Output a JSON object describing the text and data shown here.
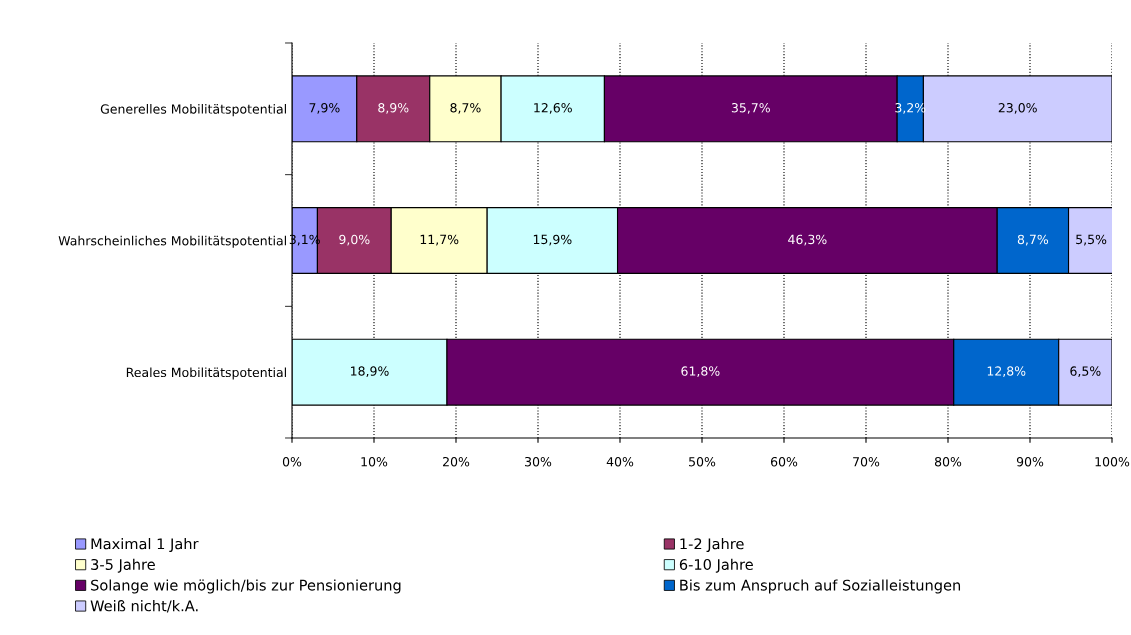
{
  "chart_data": {
    "type": "bar",
    "orientation": "horizontal",
    "stacked": true,
    "categories": [
      "Generelles Mobilitätspotential",
      "Wahrscheinliches Mobilitätspotential",
      "Reales Mobilitätspotential"
    ],
    "series": [
      {
        "name": "Maximal 1 Jahr",
        "color": "#9999ff",
        "values": [
          7.9,
          3.1,
          null
        ],
        "value_labels": [
          "7,9%",
          "3,1%",
          null
        ]
      },
      {
        "name": "1-2 Jahre",
        "color": "#993366",
        "values": [
          8.9,
          9.0,
          null
        ],
        "value_labels": [
          "8,9%",
          "9,0%",
          null
        ]
      },
      {
        "name": "3-5 Jahre",
        "color": "#ffffcc",
        "values": [
          8.7,
          11.7,
          null
        ],
        "value_labels": [
          "8,7%",
          "11,7%",
          null
        ]
      },
      {
        "name": "6-10 Jahre",
        "color": "#ccffff",
        "values": [
          12.6,
          15.9,
          18.9
        ],
        "value_labels": [
          "12,6%",
          "15,9%",
          "18,9%"
        ]
      },
      {
        "name": "Solange wie möglich/bis zur Pensionierung",
        "color": "#660066",
        "values": [
          35.7,
          46.3,
          61.8
        ],
        "value_labels": [
          "35,7%",
          "46,3%",
          "61,8%"
        ]
      },
      {
        "name": "Bis zum Anspruch auf Sozialleistungen",
        "color": "#0066cc",
        "values": [
          3.2,
          8.7,
          12.8
        ],
        "value_labels": [
          "3,2%",
          "8,7%",
          "12,8%"
        ]
      },
      {
        "name": "Weiß nicht/k.A.",
        "color": "#ccccff",
        "values": [
          23.0,
          5.5,
          6.5
        ],
        "value_labels": [
          "23,0%",
          "5,5%",
          "6,5%"
        ]
      }
    ],
    "xlim": [
      0,
      100
    ],
    "xticks": [
      {
        "value": 0,
        "label": "0%"
      },
      {
        "value": 10,
        "label": "10%"
      },
      {
        "value": 20,
        "label": "20%"
      },
      {
        "value": 30,
        "label": "30%"
      },
      {
        "value": 40,
        "label": "40%"
      },
      {
        "value": 50,
        "label": "50%"
      },
      {
        "value": 60,
        "label": "60%"
      },
      {
        "value": 70,
        "label": "70%"
      },
      {
        "value": 80,
        "label": "80%"
      },
      {
        "value": 90,
        "label": "90%"
      },
      {
        "value": 100,
        "label": "100%"
      }
    ],
    "grid": "x",
    "legend": "bottom"
  }
}
